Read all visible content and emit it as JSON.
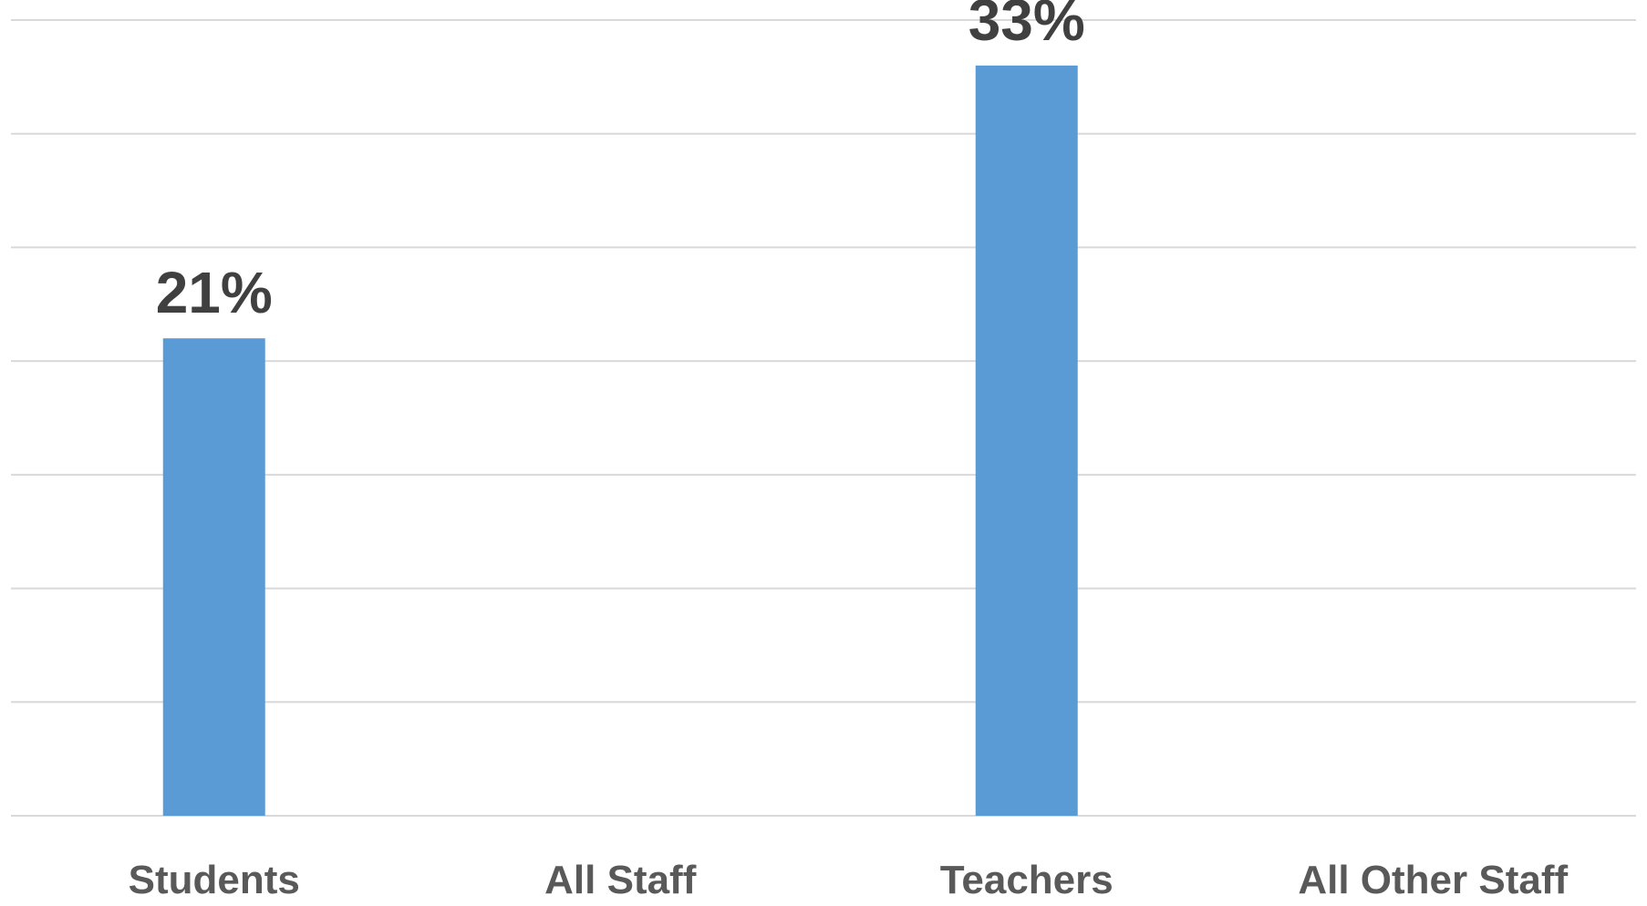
{
  "chart_data": {
    "type": "bar",
    "categories": [
      "Students",
      "All Staff",
      "Teachers",
      "All Other Staff"
    ],
    "values": [
      21,
      null,
      33,
      null
    ],
    "value_labels": [
      "21%",
      "",
      "33%",
      ""
    ],
    "ylim": [
      0,
      35
    ],
    "grid": true,
    "colors": {
      "bar": "#5b9bd5",
      "grid": "#d9d9d9"
    }
  }
}
